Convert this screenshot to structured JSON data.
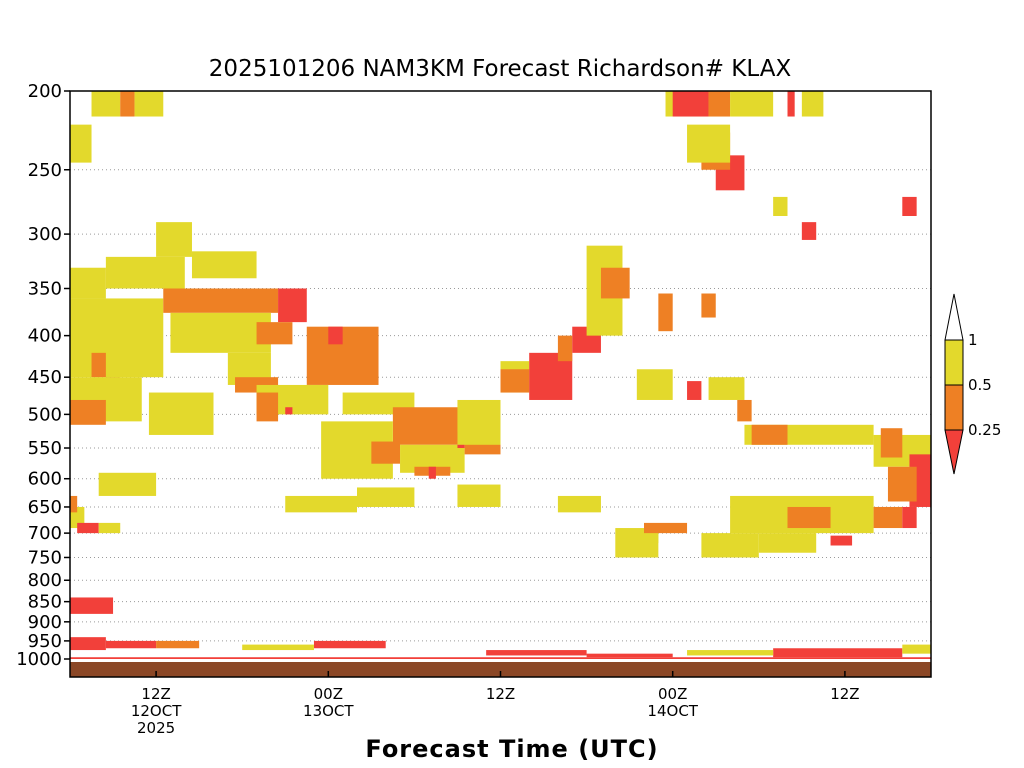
{
  "chart_data": {
    "type": "heatmap",
    "title": "2025101206 NAM3KM Forecast Richardson# KLAX",
    "xlabel": "Forecast Time (UTC)",
    "ylabel": "",
    "y_axis": {
      "scale": "pressure",
      "reversed": true,
      "range_hPa": [
        1000,
        200
      ],
      "ticks": [
        200,
        250,
        300,
        350,
        400,
        450,
        500,
        550,
        600,
        650,
        700,
        750,
        800,
        850,
        900,
        950,
        1000
      ]
    },
    "x_axis": {
      "range_hours": [
        0,
        60
      ],
      "ticks": [
        {
          "hour": 6,
          "lines": [
            "12Z",
            "12OCT",
            "2025"
          ]
        },
        {
          "hour": 18,
          "lines": [
            "00Z",
            "13OCT"
          ]
        },
        {
          "hour": 30,
          "lines": [
            "12Z"
          ]
        },
        {
          "hour": 42,
          "lines": [
            "00Z",
            "14OCT"
          ]
        },
        {
          "hour": 54,
          "lines": [
            "12Z"
          ]
        }
      ]
    },
    "gridlines": "horizontal dotted at each pressure tick",
    "colorbar": {
      "labels": [
        "1",
        "0.5",
        "0.25"
      ],
      "bins": [
        {
          "range": "0.5–1",
          "color": "#e3d92c"
        },
        {
          "range": "0.25–0.5",
          "color": "#ee8024"
        },
        {
          "range": "<0.25",
          "color": "#f2403a"
        }
      ],
      "extend_top_color": "#ffffff",
      "extend_bottom_color": "#f2403a"
    },
    "ground_color": "#8b4726",
    "regions": [
      {
        "c": "y",
        "x": [
          1.5,
          3.5
        ],
        "p": [
          200,
          215
        ]
      },
      {
        "c": "o",
        "x": [
          3.5,
          4.5
        ],
        "p": [
          200,
          215
        ]
      },
      {
        "c": "y",
        "x": [
          4.5,
          6.5
        ],
        "p": [
          200,
          215
        ]
      },
      {
        "c": "y",
        "x": [
          0,
          1.5
        ],
        "p": [
          220,
          245
        ]
      },
      {
        "c": "y",
        "x": [
          0,
          2.5
        ],
        "p": [
          330,
          360
        ]
      },
      {
        "c": "y",
        "x": [
          2.5,
          8
        ],
        "p": [
          320,
          350
        ]
      },
      {
        "c": "y",
        "x": [
          6,
          8.5
        ],
        "p": [
          290,
          320
        ]
      },
      {
        "c": "y",
        "x": [
          8.5,
          13
        ],
        "p": [
          315,
          340
        ]
      },
      {
        "c": "y",
        "x": [
          0,
          6.5
        ],
        "p": [
          360,
          450
        ]
      },
      {
        "c": "o",
        "x": [
          6.5,
          14.5
        ],
        "p": [
          350,
          375
        ]
      },
      {
        "c": "r",
        "x": [
          14.5,
          16.5
        ],
        "p": [
          350,
          385
        ]
      },
      {
        "c": "y",
        "x": [
          7,
          14
        ],
        "p": [
          375,
          420
        ]
      },
      {
        "c": "o",
        "x": [
          13,
          15.5
        ],
        "p": [
          385,
          410
        ]
      },
      {
        "c": "o",
        "x": [
          16.5,
          21.5
        ],
        "p": [
          390,
          460
        ]
      },
      {
        "c": "r",
        "x": [
          18,
          19
        ],
        "p": [
          390,
          410
        ]
      },
      {
        "c": "y",
        "x": [
          11,
          14
        ],
        "p": [
          420,
          460
        ]
      },
      {
        "c": "o",
        "x": [
          11.5,
          14.5
        ],
        "p": [
          450,
          470
        ]
      },
      {
        "c": "o",
        "x": [
          1.5,
          2.5
        ],
        "p": [
          420,
          450
        ]
      },
      {
        "c": "o",
        "x": [
          2.5,
          3.5
        ],
        "p": [
          450,
          480
        ]
      },
      {
        "c": "y",
        "x": [
          0,
          5
        ],
        "p": [
          450,
          510
        ]
      },
      {
        "c": "o",
        "x": [
          0,
          2.5
        ],
        "p": [
          480,
          515
        ]
      },
      {
        "c": "y",
        "x": [
          5.5,
          10
        ],
        "p": [
          470,
          530
        ]
      },
      {
        "c": "y",
        "x": [
          13,
          18
        ],
        "p": [
          460,
          500
        ]
      },
      {
        "c": "o",
        "x": [
          13,
          14.5
        ],
        "p": [
          470,
          510
        ]
      },
      {
        "c": "r",
        "x": [
          15,
          15.5
        ],
        "p": [
          490,
          500
        ]
      },
      {
        "c": "y",
        "x": [
          19,
          24
        ],
        "p": [
          470,
          500
        ]
      },
      {
        "c": "o",
        "x": [
          22.5,
          27.5
        ],
        "p": [
          490,
          545
        ]
      },
      {
        "c": "y",
        "x": [
          17.5,
          22.5
        ],
        "p": [
          510,
          600
        ]
      },
      {
        "c": "o",
        "x": [
          21,
          23
        ],
        "p": [
          540,
          575
        ]
      },
      {
        "c": "y",
        "x": [
          23,
          27.5
        ],
        "p": [
          545,
          590
        ]
      },
      {
        "c": "o",
        "x": [
          24,
          26.5
        ],
        "p": [
          580,
          595
        ]
      },
      {
        "c": "r",
        "x": [
          25,
          25.5
        ],
        "p": [
          580,
          600
        ]
      },
      {
        "c": "r",
        "x": [
          27,
          27.5
        ],
        "p": [
          525,
          550
        ]
      },
      {
        "c": "o",
        "x": [
          27.5,
          30
        ],
        "p": [
          540,
          560
        ]
      },
      {
        "c": "y",
        "x": [
          27,
          30
        ],
        "p": [
          480,
          545
        ]
      },
      {
        "c": "y",
        "x": [
          30,
          32
        ],
        "p": [
          430,
          470
        ]
      },
      {
        "c": "o",
        "x": [
          30,
          32
        ],
        "p": [
          440,
          470
        ]
      },
      {
        "c": "r",
        "x": [
          32,
          35
        ],
        "p": [
          420,
          480
        ]
      },
      {
        "c": "o",
        "x": [
          34,
          35
        ],
        "p": [
          400,
          430
        ]
      },
      {
        "c": "r",
        "x": [
          35,
          37
        ],
        "p": [
          390,
          420
        ]
      },
      {
        "c": "y",
        "x": [
          36,
          38.5
        ],
        "p": [
          310,
          400
        ]
      },
      {
        "c": "o",
        "x": [
          37,
          39
        ],
        "p": [
          330,
          360
        ]
      },
      {
        "c": "y",
        "x": [
          39.5,
          42
        ],
        "p": [
          440,
          480
        ]
      },
      {
        "c": "y",
        "x": [
          41.5,
          46
        ],
        "p": [
          200,
          215
        ]
      },
      {
        "c": "r",
        "x": [
          42,
          44.5
        ],
        "p": [
          200,
          215
        ]
      },
      {
        "c": "o",
        "x": [
          44.5,
          46
        ],
        "p": [
          200,
          215
        ]
      },
      {
        "c": "y",
        "x": [
          46,
          49
        ],
        "p": [
          200,
          215
        ]
      },
      {
        "c": "r",
        "x": [
          50,
          50.5
        ],
        "p": [
          200,
          215
        ]
      },
      {
        "c": "y",
        "x": [
          51,
          52.5
        ],
        "p": [
          200,
          215
        ]
      },
      {
        "c": "r",
        "x": [
          45,
          47
        ],
        "p": [
          240,
          265
        ]
      },
      {
        "c": "o",
        "x": [
          44,
          46
        ],
        "p": [
          225,
          250
        ]
      },
      {
        "c": "y",
        "x": [
          43,
          46
        ],
        "p": [
          220,
          245
        ]
      },
      {
        "c": "y",
        "x": [
          49,
          50
        ],
        "p": [
          270,
          285
        ]
      },
      {
        "c": "r",
        "x": [
          51,
          52
        ],
        "p": [
          290,
          305
        ]
      },
      {
        "c": "r",
        "x": [
          58,
          59
        ],
        "p": [
          270,
          285
        ]
      },
      {
        "c": "o",
        "x": [
          41,
          42
        ],
        "p": [
          355,
          395
        ]
      },
      {
        "c": "o",
        "x": [
          44,
          45
        ],
        "p": [
          355,
          380
        ]
      },
      {
        "c": "r",
        "x": [
          43,
          44
        ],
        "p": [
          455,
          480
        ]
      },
      {
        "c": "y",
        "x": [
          44.5,
          47
        ],
        "p": [
          450,
          480
        ]
      },
      {
        "c": "o",
        "x": [
          46.5,
          47.5
        ],
        "p": [
          480,
          510
        ]
      },
      {
        "c": "y",
        "x": [
          47,
          56
        ],
        "p": [
          515,
          545
        ]
      },
      {
        "c": "o",
        "x": [
          47.5,
          50
        ],
        "p": [
          515,
          545
        ]
      },
      {
        "c": "y",
        "x": [
          56,
          60
        ],
        "p": [
          530,
          580
        ]
      },
      {
        "c": "o",
        "x": [
          56.5,
          58
        ],
        "p": [
          520,
          565
        ]
      },
      {
        "c": "r",
        "x": [
          58.5,
          60
        ],
        "p": [
          560,
          650
        ]
      },
      {
        "c": "o",
        "x": [
          57,
          59
        ],
        "p": [
          580,
          640
        ]
      },
      {
        "c": "y",
        "x": [
          46,
          56
        ],
        "p": [
          630,
          700
        ]
      },
      {
        "c": "o",
        "x": [
          50,
          53
        ],
        "p": [
          650,
          690
        ]
      },
      {
        "c": "o",
        "x": [
          56,
          58
        ],
        "p": [
          650,
          690
        ]
      },
      {
        "c": "r",
        "x": [
          58,
          59
        ],
        "p": [
          650,
          690
        ]
      },
      {
        "c": "y",
        "x": [
          44,
          48
        ],
        "p": [
          700,
          750
        ]
      },
      {
        "c": "y",
        "x": [
          48,
          52
        ],
        "p": [
          700,
          740
        ]
      },
      {
        "c": "r",
        "x": [
          53,
          54.5
        ],
        "p": [
          705,
          725
        ]
      },
      {
        "c": "y",
        "x": [
          40,
          41
        ],
        "p": [
          690,
          720
        ]
      },
      {
        "c": "y",
        "x": [
          0,
          1
        ],
        "p": [
          650,
          690
        ]
      },
      {
        "c": "o",
        "x": [
          0,
          0.5
        ],
        "p": [
          630,
          660
        ]
      },
      {
        "c": "r",
        "x": [
          0.5,
          2
        ],
        "p": [
          680,
          700
        ]
      },
      {
        "c": "y",
        "x": [
          2,
          3.5
        ],
        "p": [
          680,
          700
        ]
      },
      {
        "c": "y",
        "x": [
          2,
          6
        ],
        "p": [
          590,
          630
        ]
      },
      {
        "c": "y",
        "x": [
          15,
          20
        ],
        "p": [
          630,
          660
        ]
      },
      {
        "c": "y",
        "x": [
          20,
          24
        ],
        "p": [
          615,
          650
        ]
      },
      {
        "c": "y",
        "x": [
          27,
          30
        ],
        "p": [
          610,
          650
        ]
      },
      {
        "c": "y",
        "x": [
          34,
          37
        ],
        "p": [
          630,
          660
        ]
      },
      {
        "c": "y",
        "x": [
          38,
          41
        ],
        "p": [
          690,
          750
        ]
      },
      {
        "c": "o",
        "x": [
          40,
          43
        ],
        "p": [
          680,
          700
        ]
      }
    ],
    "low_bands": [
      {
        "c": "r",
        "x": [
          0,
          3
        ],
        "p": [
          840,
          880
        ]
      },
      {
        "c": "r",
        "x": [
          0,
          2.5
        ],
        "p": [
          940,
          975
        ]
      },
      {
        "c": "r",
        "x": [
          2.5,
          6
        ],
        "p": [
          950,
          970
        ]
      },
      {
        "c": "o",
        "x": [
          6,
          9
        ],
        "p": [
          950,
          970
        ]
      },
      {
        "c": "r",
        "x": [
          17,
          22
        ],
        "p": [
          950,
          970
        ]
      },
      {
        "c": "r",
        "x": [
          29,
          36
        ],
        "p": [
          975,
          990
        ]
      },
      {
        "c": "r",
        "x": [
          36,
          42
        ],
        "p": [
          985,
          995
        ]
      },
      {
        "c": "r",
        "x": [
          49,
          58
        ],
        "p": [
          970,
          995
        ]
      },
      {
        "c": "y",
        "x": [
          43,
          49
        ],
        "p": [
          975,
          990
        ]
      },
      {
        "c": "y",
        "x": [
          12,
          17
        ],
        "p": [
          960,
          975
        ]
      },
      {
        "c": "y",
        "x": [
          58,
          60
        ],
        "p": [
          960,
          985
        ]
      },
      {
        "c": "r",
        "x": [
          0,
          60
        ],
        "p": [
          995,
          1000
        ]
      }
    ]
  }
}
